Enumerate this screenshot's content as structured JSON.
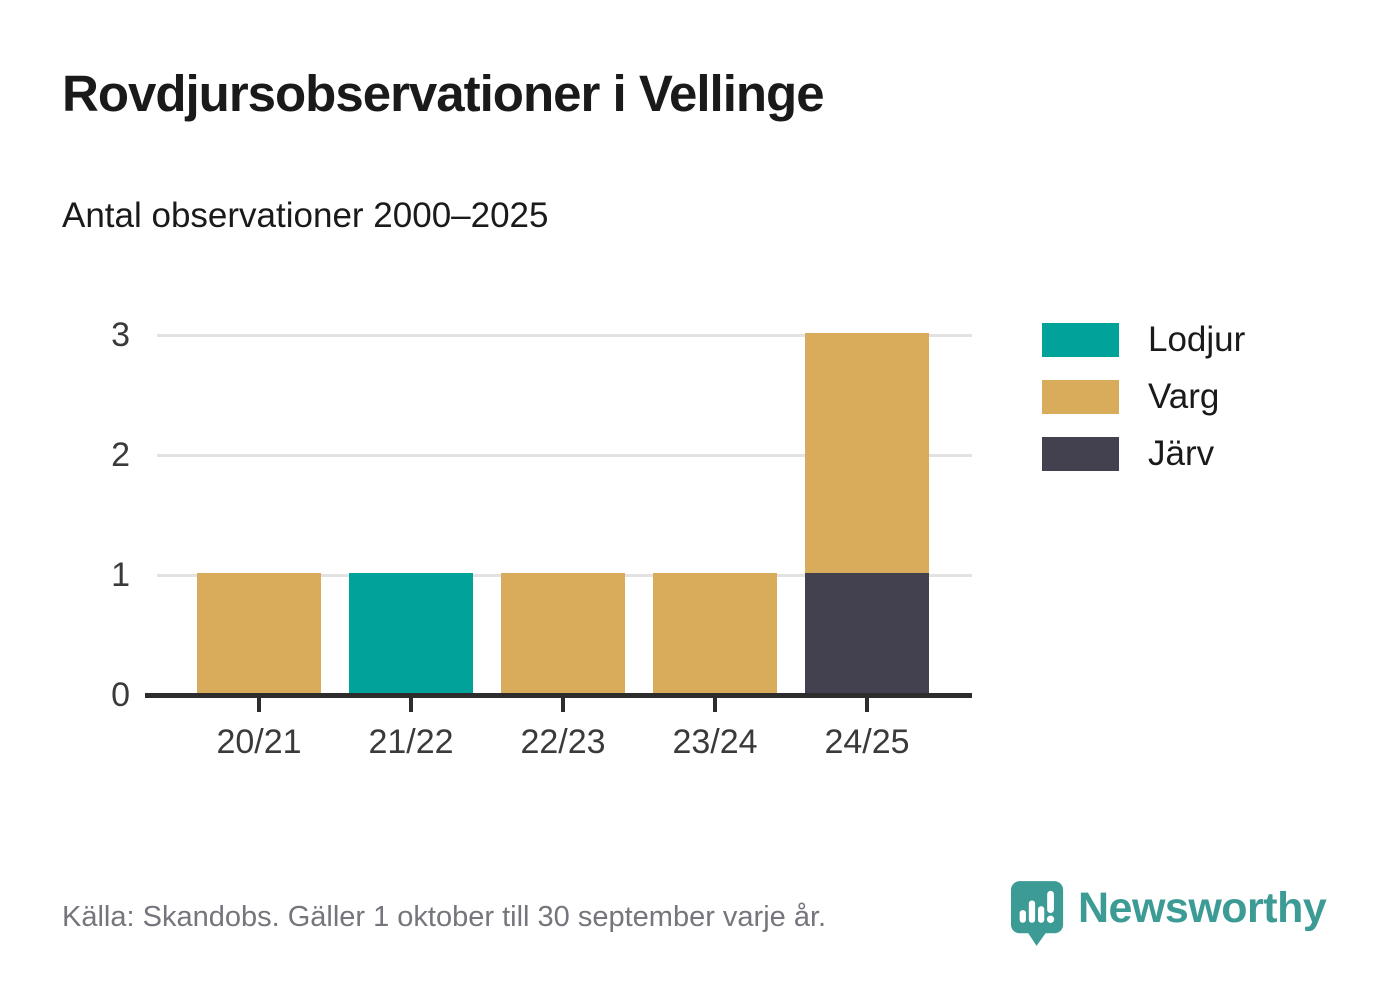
{
  "header": {
    "title": "Rovdjursobservationer i Vellinge",
    "subtitle": "Antal observationer 2000–2025"
  },
  "chart_data": {
    "type": "bar",
    "stacked": true,
    "title": "Rovdjursobservationer i Vellinge",
    "subtitle": "Antal observationer 2000–2025",
    "categories": [
      "20/21",
      "21/22",
      "22/23",
      "23/24",
      "24/25"
    ],
    "series": [
      {
        "name": "Lodjur",
        "color": "#00a29a",
        "values": [
          0,
          1,
          0,
          0,
          0
        ]
      },
      {
        "name": "Varg",
        "color": "#d9ac5b",
        "values": [
          1,
          0,
          1,
          1,
          2
        ]
      },
      {
        "name": "Järv",
        "color": "#434050",
        "values": [
          0,
          0,
          0,
          0,
          1
        ]
      }
    ],
    "stack_order_bottom_to_top": [
      "Järv",
      "Varg",
      "Lodjur"
    ],
    "xlabel": "",
    "ylabel": "",
    "ylim": [
      0,
      3
    ],
    "yticks": [
      0,
      1,
      2,
      3
    ],
    "grid": true,
    "legend_position": "right"
  },
  "footer": {
    "source": "Källa: Skandobs. Gäller 1 oktober till 30 september varje år.",
    "brand": "Newsworthy",
    "brand_color": "#3d9b95"
  }
}
